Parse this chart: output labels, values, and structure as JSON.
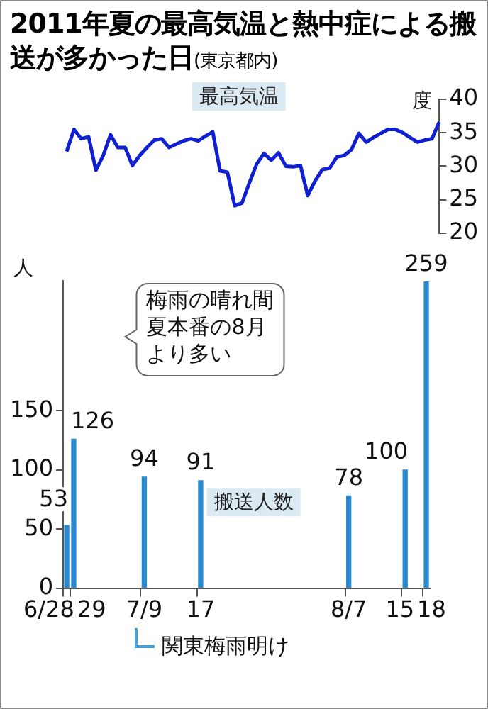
{
  "chart_data": [
    {
      "type": "line",
      "title": "2011年夏の最高気温と熱中症による搬送が多かった日",
      "subtitle": "(東京都内)",
      "ylabel": "度",
      "categories": [
        null,
        null,
        null,
        null,
        null,
        null,
        null,
        null,
        null,
        null,
        null,
        null,
        null,
        null,
        null,
        null,
        null,
        null,
        null,
        null,
        null,
        null,
        null,
        null,
        null,
        null,
        null,
        null,
        null,
        null,
        null,
        null,
        null,
        null,
        null,
        null,
        null,
        null,
        null,
        null,
        null,
        null,
        null,
        null,
        null,
        null,
        null,
        null,
        null,
        null,
        null,
        null
      ],
      "series": [
        {
          "name": "最高気温",
          "color": "#1020d0",
          "values": [
            32.2,
            35.5,
            34.1,
            34.4,
            29.4,
            31.6,
            34.7,
            32.8,
            32.8,
            30.1,
            31.6,
            32.8,
            33.9,
            34.1,
            32.8,
            33.3,
            33.8,
            34.1,
            33.8,
            34.5,
            35.1,
            29.3,
            29.1,
            24.1,
            24.5,
            27.5,
            30.3,
            31.9,
            30.9,
            32.0,
            30.0,
            29.9,
            30.1,
            25.6,
            27.8,
            29.5,
            29.7,
            31.4,
            31.6,
            32.5,
            34.9,
            33.6,
            34.3,
            34.9,
            35.5,
            35.5,
            35.0,
            34.3,
            33.6,
            33.9,
            34.1,
            36.6
          ]
        }
      ],
      "ylim": [
        20,
        40
      ],
      "yticks": [
        20,
        25,
        30,
        35,
        40
      ],
      "tick_labels": "y",
      "marker": "none",
      "legend": false,
      "grid": false
    },
    {
      "type": "bar",
      "ylabel": "人",
      "categories": [
        "6/28",
        "29",
        null,
        null,
        null,
        null,
        null,
        null,
        null,
        null,
        null,
        "7/9",
        null,
        null,
        null,
        null,
        null,
        null,
        null,
        "17",
        null,
        null,
        null,
        null,
        null,
        null,
        null,
        null,
        null,
        null,
        null,
        null,
        null,
        null,
        null,
        null,
        null,
        null,
        null,
        null,
        "8/7",
        null,
        null,
        null,
        null,
        null,
        null,
        null,
        "15",
        null,
        null,
        "18"
      ],
      "series": [
        {
          "name": "搬送人数",
          "color": "#2a8ad0",
          "values": [
            53,
            126,
            null,
            null,
            null,
            null,
            null,
            null,
            null,
            null,
            null,
            94,
            null,
            null,
            null,
            null,
            null,
            null,
            null,
            91,
            null,
            null,
            null,
            null,
            null,
            null,
            null,
            null,
            null,
            null,
            null,
            null,
            null,
            null,
            null,
            null,
            null,
            null,
            null,
            null,
            78,
            null,
            null,
            null,
            null,
            null,
            null,
            null,
            100,
            null,
            null,
            259
          ]
        }
      ],
      "ylim": [
        0,
        260
      ],
      "yticks": [
        0,
        50,
        100,
        150
      ],
      "data_labels": true,
      "legend": false,
      "grid": false,
      "annotations": [
        "梅雨の晴れ間夏本番の8月より多い",
        "関東梅雨明け"
      ]
    }
  ]
}
